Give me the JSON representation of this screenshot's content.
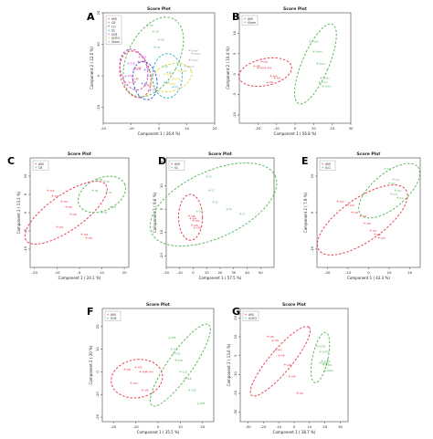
{
  "figure": {
    "panels": [
      {
        "letter": "A",
        "title": "Score Plot",
        "xlabel": "Component 1 ( 26.4 %)",
        "ylabel": "Component 2 ( 22.5 %)",
        "xlim": [
          -20,
          20
        ],
        "ylim": [
          -15,
          20
        ],
        "xticks": [
          -20,
          -10,
          0,
          10,
          20
        ],
        "yticks": [
          -10,
          0,
          10,
          20
        ],
        "legend": [
          {
            "name": "AMI",
            "color": "#e8414f"
          },
          {
            "name": "CB",
            "color": "#5cb85c"
          },
          {
            "name": "CO",
            "color": "#3b5bd9"
          },
          {
            "name": "SC",
            "color": "#38b6c8"
          },
          {
            "name": "SCB",
            "color": "#c44bd1"
          },
          {
            "name": "SCRO",
            "color": "#e0d23a"
          },
          {
            "name": "Sham",
            "color": "#9a9a9a"
          }
        ]
      },
      {
        "letter": "B",
        "title": "Score Plot",
        "xlabel": "Component 1 ( 56.8 %)",
        "ylabel": "Component 2 ( 10.4 %)",
        "xlim": [
          -30,
          30
        ],
        "ylim": [
          -12,
          15
        ],
        "xticks": [
          -20,
          -10,
          0,
          10,
          20,
          30
        ],
        "yticks": [
          -10,
          -5,
          0,
          5,
          10
        ],
        "legend": [
          {
            "name": "AMI",
            "color": "#e8414f"
          },
          {
            "name": "Sham",
            "color": "#5cb85c"
          }
        ]
      },
      {
        "letter": "C",
        "title": "Score Plot",
        "xlabel": "Component 1 ( 24.1 %)",
        "ylabel": "Component 2 ( 13.1 %)",
        "xlim": [
          -22,
          22
        ],
        "ylim": [
          -15,
          15
        ],
        "xticks": [
          -20,
          -10,
          0,
          10,
          20
        ],
        "yticks": [
          -10,
          -5,
          0,
          5,
          10
        ],
        "legend": [
          {
            "name": "AMI",
            "color": "#e8414f"
          },
          {
            "name": "CB",
            "color": "#5cb85c"
          }
        ]
      },
      {
        "letter": "D",
        "title": "Score Plot",
        "xlabel": "Component 1 ( 57.5 %)",
        "ylabel": "Component 2 ( 9.6 %)",
        "xlim": [
          -20,
          60
        ],
        "ylim": [
          -25,
          22
        ],
        "xticks": [
          -20,
          -10,
          0,
          10,
          20,
          30,
          40,
          50
        ],
        "yticks": [
          -20,
          -10,
          0,
          10,
          20
        ],
        "legend": [
          {
            "name": "AMI",
            "color": "#e8414f"
          },
          {
            "name": "SC",
            "color": "#5cb85c"
          }
        ]
      },
      {
        "letter": "E",
        "title": "Score Plot",
        "xlabel": "Component 1 ( 42.3 %)",
        "ylabel": "Component 2 ( 7.9 %)",
        "xlim": [
          -25,
          25
        ],
        "ylim": [
          -15,
          15
        ],
        "xticks": [
          -20,
          -10,
          0,
          10,
          20
        ],
        "yticks": [
          -10,
          0,
          10
        ],
        "legend": [
          {
            "name": "AMI",
            "color": "#e8414f"
          },
          {
            "name": "ICG",
            "color": "#5cb85c"
          }
        ]
      },
      {
        "letter": "F",
        "title": "Score Plot",
        "xlabel": "Component 1 ( 35.5 %)",
        "ylabel": "Component 2 ( 30 %)",
        "xlim": [
          -25,
          25
        ],
        "ylim": [
          -22,
          28
        ],
        "xticks": [
          -20,
          -10,
          0,
          10,
          20
        ],
        "yticks": [
          -20,
          -10,
          0,
          10,
          20
        ],
        "legend": [
          {
            "name": "AMI",
            "color": "#e8414f"
          },
          {
            "name": "SCB",
            "color": "#5cb85c"
          }
        ]
      },
      {
        "letter": "G",
        "title": "Score Plot",
        "xlabel": "Component 1 ( 38.7 %)",
        "ylabel": "Component 2 ( 13.6 %)",
        "xlim": [
          -35,
          35
        ],
        "ylim": [
          -35,
          25
        ],
        "xticks": [
          -30,
          -20,
          -10,
          0,
          10,
          20,
          30
        ],
        "yticks": [
          -30,
          -20,
          -10,
          0,
          10,
          20
        ],
        "legend": [
          {
            "name": "AMI",
            "color": "#e8414f"
          },
          {
            "name": "SCRO",
            "color": "#5cb85c"
          }
        ]
      }
    ]
  },
  "chart_data": [
    {
      "type": "scatter",
      "panel": "A",
      "title": "Score Plot",
      "xlabel": "Component 1 ( 26.4 %)",
      "ylabel": "Component 2 ( 22.5 %)",
      "xlim": [
        -20,
        20
      ],
      "ylim": [
        -15,
        20
      ],
      "series": [
        {
          "name": "AMI",
          "color": "#e8414f",
          "x": [
            -10.5,
            -8.5,
            -9.5,
            -7.5,
            -5
          ],
          "y": [
            -2,
            2.5,
            -1,
            4.5,
            -3
          ],
          "ellipse": {
            "cx": -8.5,
            "cy": 0.5,
            "rx": 5,
            "ry": 8,
            "angle": -15
          }
        },
        {
          "name": "CB",
          "color": "#5cb85c",
          "x": [
            -4,
            -2,
            0,
            -1.5
          ],
          "y": [
            16,
            14,
            11.5,
            9
          ],
          "ellipse": {
            "cx": -2,
            "cy": 6,
            "rx": 8.5,
            "ry": 14.5,
            "angle": 28
          }
        },
        {
          "name": "CO",
          "color": "#3b5bd9",
          "x": [
            -6,
            -4,
            -5,
            -3
          ],
          "y": [
            -2.5,
            0,
            2,
            -4.5
          ],
          "ellipse": {
            "cx": -5,
            "cy": -1.5,
            "rx": 4,
            "ry": 6.5,
            "angle": -10
          }
        },
        {
          "name": "SC",
          "color": "#38b6c8",
          "x": [
            2,
            3,
            5,
            1.5
          ],
          "y": [
            -2,
            1,
            -3.5,
            3
          ],
          "ellipse": {
            "cx": 3,
            "cy": 0,
            "rx": 5,
            "ry": 7.5,
            "angle": 0
          }
        },
        {
          "name": "SCB",
          "color": "#c44bd1",
          "x": [
            -11,
            -9,
            -7,
            -12
          ],
          "y": [
            4,
            2,
            6,
            0
          ],
          "ellipse": {
            "cx": -9,
            "cy": 2,
            "rx": 4.5,
            "ry": 7,
            "angle": -15
          }
        },
        {
          "name": "SCRO",
          "color": "#e0d23a",
          "x": [
            3,
            5,
            7,
            2
          ],
          "y": [
            -2.5,
            -1,
            1.5,
            0.5
          ],
          "ellipse": {
            "cx": 4.5,
            "cy": -0.5,
            "rx": 7,
            "ry": 4.5,
            "angle": -18
          }
        },
        {
          "name": "Sham",
          "color": "#9a9a9a",
          "x": [
            9.5,
            11,
            12,
            11
          ],
          "y": [
            3,
            5,
            7,
            8
          ],
          "ellipse": null
        }
      ]
    },
    {
      "type": "scatter",
      "panel": "B",
      "title": "Score Plot",
      "xlabel": "Component 1 ( 56.8 %)",
      "ylabel": "Component 2 ( 10.4 %)",
      "xlim": [
        -30,
        30
      ],
      "ylim": [
        -12,
        15
      ],
      "series": [
        {
          "name": "AMI",
          "color": "#e8414f",
          "x": [
            -22,
            -20,
            -18,
            -16,
            -13,
            -11,
            -15
          ],
          "y": [
            2,
            1.5,
            3,
            1.5,
            -0.5,
            -1,
            -2
          ],
          "ellipse": {
            "cx": -16,
            "cy": 0.5,
            "rx": 9,
            "ry": 4.5,
            "angle": -12
          }
        },
        {
          "name": "Sham",
          "color": "#5cb85c",
          "x": [
            8,
            10,
            12,
            14,
            15,
            13
          ],
          "y": [
            8,
            5.5,
            2.5,
            -1,
            -3,
            -2
          ],
          "ellipse": {
            "cx": 11,
            "cy": 2.5,
            "rx": 4.5,
            "ry": 14.5,
            "angle": 23
          }
        }
      ]
    },
    {
      "type": "scatter",
      "panel": "C",
      "title": "Score Plot",
      "xlabel": "Component 1 ( 24.1 %)",
      "ylabel": "Component 2 ( 13.1 %)",
      "xlim": [
        -22,
        22
      ],
      "ylim": [
        -15,
        15
      ],
      "series": [
        {
          "name": "AMI",
          "color": "#e8414f",
          "x": [
            -14,
            -12,
            -8,
            -6,
            -4,
            -10,
            3,
            1
          ],
          "y": [
            6,
            4.5,
            3,
            1.5,
            -0.5,
            -4,
            -7,
            -6
          ],
          "ellipse": {
            "cx": -6,
            "cy": 0,
            "rx": 16.5,
            "ry": 6,
            "angle": -35
          }
        },
        {
          "name": "CB",
          "color": "#5cb85c",
          "x": [
            8,
            11,
            12,
            14,
            10,
            6
          ],
          "y": [
            9,
            8.5,
            5.5,
            1.5,
            0,
            6
          ],
          "ellipse": {
            "cx": 10,
            "cy": 5,
            "rx": 8.5,
            "ry": 5.5,
            "angle": -25
          }
        }
      ]
    },
    {
      "type": "scatter",
      "panel": "D",
      "title": "Score Plot",
      "xlabel": "Component 1 ( 57.5 %)",
      "ylabel": "Component 2 ( 9.6 %)",
      "xlim": [
        -20,
        60
      ],
      "ylim": [
        -25,
        22
      ],
      "series": [
        {
          "name": "AMI",
          "color": "#e8414f",
          "x": [
            -3,
            -2,
            0,
            -1,
            1
          ],
          "y": [
            -3,
            -4,
            -5,
            -7,
            -8
          ],
          "ellipse": {
            "cx": -2,
            "cy": -3.5,
            "rx": 6.5,
            "ry": 12.5,
            "angle": 0
          }
        },
        {
          "name": "SC",
          "color": "#5cb85c",
          "x": [
            10,
            12,
            15,
            25,
            35,
            3
          ],
          "y": [
            14,
            8,
            3,
            0,
            -2,
            -1
          ],
          "ellipse": {
            "cx": 15,
            "cy": 2,
            "rx": 37,
            "ry": 18,
            "angle": -25
          }
        }
      ]
    },
    {
      "type": "scatter",
      "panel": "E",
      "title": "Score Plot",
      "xlabel": "Component 1 ( 42.3 %)",
      "ylabel": "Component 2 ( 7.9 %)",
      "xlim": [
        -25,
        25
      ],
      "ylim": [
        -15,
        15
      ],
      "series": [
        {
          "name": "AMI",
          "color": "#e8414f",
          "x": [
            -15,
            -10,
            -8,
            -4,
            -2,
            1,
            3,
            5
          ],
          "y": [
            3,
            2,
            0,
            -1,
            -3,
            -5,
            -6,
            -7
          ],
          "ellipse": {
            "cx": -3,
            "cy": -2,
            "rx": 18.5,
            "ry": 7.5,
            "angle": -35
          }
        },
        {
          "name": "ICG",
          "color": "#5cb85c",
          "x": [
            8,
            10,
            12,
            13,
            14,
            11
          ],
          "y": [
            12,
            8,
            9,
            6,
            4,
            5
          ],
          "ellipse": {
            "cx": 10,
            "cy": 6,
            "rx": 13,
            "ry": 6,
            "angle": -40
          }
        }
      ]
    },
    {
      "type": "scatter",
      "panel": "F",
      "title": "Score Plot",
      "xlabel": "Component 1 ( 35.5 %)",
      "ylabel": "Component 2 ( 30 %)",
      "xlim": [
        -25,
        25
      ],
      "ylim": [
        -22,
        28
      ],
      "series": [
        {
          "name": "AMI",
          "color": "#e8414f",
          "x": [
            -15,
            -10,
            -8,
            -5,
            -12,
            -7
          ],
          "y": [
            1,
            2,
            0,
            0,
            -5,
            -8
          ],
          "ellipse": {
            "cx": -9.5,
            "cy": -3,
            "rx": 11.5,
            "ry": 8.5,
            "angle": -10
          }
        },
        {
          "name": "SCB",
          "color": "#5cb85c",
          "x": [
            5,
            6,
            7,
            8,
            10,
            12,
            14,
            18
          ],
          "y": [
            15,
            10,
            8,
            5,
            0,
            -3,
            -8,
            -14
          ],
          "ellipse": {
            "cx": 10,
            "cy": 3,
            "rx": 22,
            "ry": 5.5,
            "angle": -55
          }
        }
      ]
    },
    {
      "type": "scatter",
      "panel": "G",
      "title": "Score Plot",
      "xlabel": "Component 1 ( 38.7 %)",
      "ylabel": "Component 2 ( 13.6 %)",
      "xlim": [
        -35,
        35
      ],
      "ylim": [
        -35,
        25
      ],
      "series": [
        {
          "name": "AMI",
          "color": "#e8414f",
          "x": [
            -17,
            -14,
            -12,
            -10,
            -6,
            -3,
            2
          ],
          "y": [
            10,
            8,
            3,
            0,
            -5,
            -11,
            -20
          ],
          "ellipse": {
            "cx": -9,
            "cy": -3,
            "rx": 26,
            "ry": 6.5,
            "angle": -50
          }
        },
        {
          "name": "SCRO",
          "color": "#5cb85c",
          "x": [
            15,
            17,
            18,
            19,
            20,
            17
          ],
          "y": [
            5,
            2,
            -3,
            -5,
            -8,
            -4
          ],
          "ellipse": {
            "cx": 17,
            "cy": -1,
            "rx": 4.5,
            "ry": 15,
            "angle": 12
          }
        }
      ]
    }
  ]
}
